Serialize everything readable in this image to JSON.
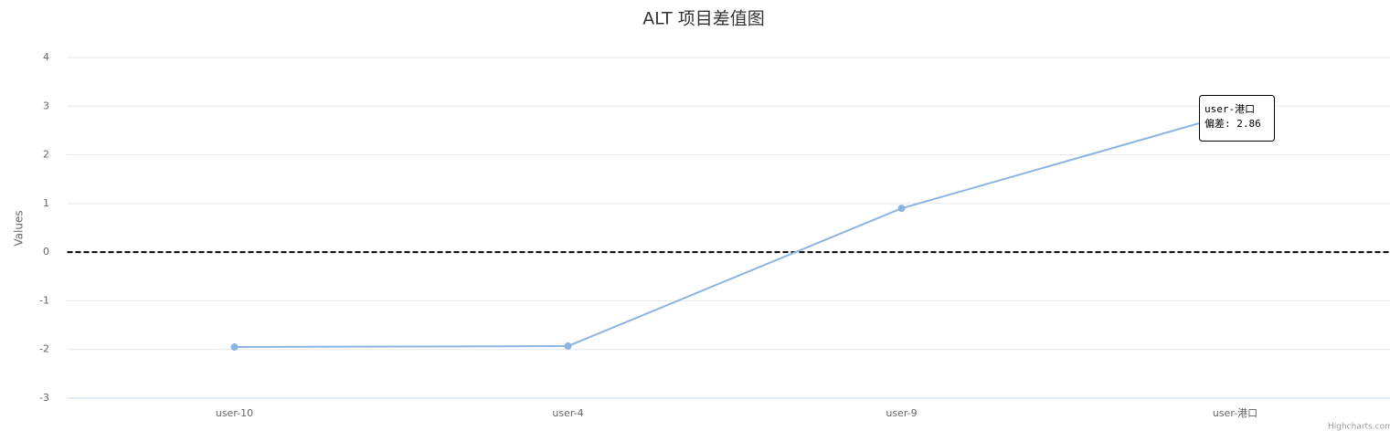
{
  "chart_data": {
    "type": "line",
    "title": "ALT 项目差值图",
    "y_axis_label": "Values",
    "categories": [
      "user-10",
      "user-4",
      "user-9",
      "user-港口"
    ],
    "series": [
      {
        "name": "偏差",
        "color": "#8bb4e0",
        "values": [
          -1.95,
          -1.93,
          0.9,
          2.86
        ]
      }
    ],
    "ylim": [
      -3,
      4
    ],
    "yticks": [
      -3,
      -2,
      -1,
      0,
      1,
      2,
      3,
      4
    ],
    "grid": true,
    "plot_lines": [
      {
        "value": 0,
        "color": "#000000"
      }
    ],
    "tooltip": {
      "title": "user-港口",
      "text": "偏差: 2.86"
    },
    "credits": "Highcharts.com"
  }
}
